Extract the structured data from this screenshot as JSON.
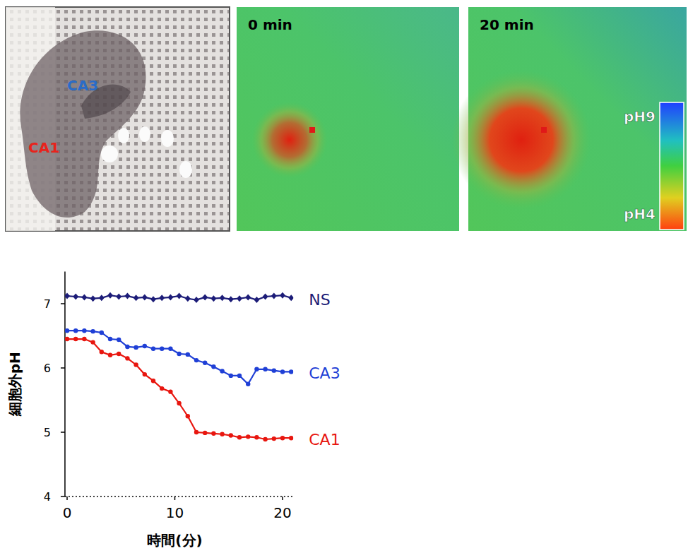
{
  "images": {
    "photo": {
      "labels": [
        {
          "text": "CA3",
          "color": "#2a6cc8"
        },
        {
          "text": "CA1",
          "color": "#e8231c"
        }
      ]
    },
    "heatmaps": [
      {
        "title": "0 min"
      },
      {
        "title": "20 min"
      }
    ],
    "colorbar": {
      "range": [
        4,
        9
      ],
      "ticks": [
        {
          "value": 9,
          "label": "pH9"
        },
        {
          "value": 4,
          "label": "pH4"
        }
      ]
    }
  },
  "chart_data": {
    "type": "line",
    "x_label": "時間(分)",
    "y_label": "細胞外pH",
    "x": [
      0,
      0.8,
      1.6,
      2.4,
      3.2,
      4,
      4.8,
      5.6,
      6.4,
      7.2,
      8,
      8.8,
      9.6,
      10.4,
      11.2,
      12,
      12.8,
      13.6,
      14.4,
      15.2,
      16,
      16.8,
      17.6,
      18.4,
      19.2,
      20,
      20.8
    ],
    "xlim": [
      -0.2,
      21
    ],
    "xticks": [
      0,
      10,
      20
    ],
    "ylim": [
      4,
      7.5
    ],
    "yticks": [
      4,
      5,
      6,
      7
    ],
    "series": [
      {
        "name": "NS",
        "color": "#1c1c78",
        "marker": "diamond",
        "values": [
          7.12,
          7.11,
          7.1,
          7.08,
          7.09,
          7.13,
          7.11,
          7.12,
          7.09,
          7.1,
          7.07,
          7.09,
          7.1,
          7.12,
          7.08,
          7.06,
          7.1,
          7.08,
          7.09,
          7.07,
          7.08,
          7.1,
          7.06,
          7.11,
          7.12,
          7.13,
          7.09
        ]
      },
      {
        "name": "CA3",
        "color": "#1f3fd6",
        "marker": "circle",
        "values": [
          6.58,
          6.58,
          6.58,
          6.57,
          6.55,
          6.45,
          6.44,
          6.33,
          6.32,
          6.34,
          6.3,
          6.3,
          6.3,
          6.22,
          6.21,
          6.12,
          6.08,
          6.02,
          5.95,
          5.88,
          5.88,
          5.75,
          5.98,
          5.98,
          5.96,
          5.94,
          5.94
        ]
      },
      {
        "name": "CA1",
        "color": "#e8160f",
        "marker": "circle",
        "values": [
          6.45,
          6.45,
          6.45,
          6.4,
          6.25,
          6.2,
          6.22,
          6.15,
          6.05,
          5.9,
          5.8,
          5.68,
          5.63,
          5.45,
          5.25,
          5.0,
          4.99,
          4.98,
          4.97,
          4.95,
          4.92,
          4.93,
          4.92,
          4.89,
          4.9,
          4.91,
          4.91
        ]
      }
    ]
  }
}
